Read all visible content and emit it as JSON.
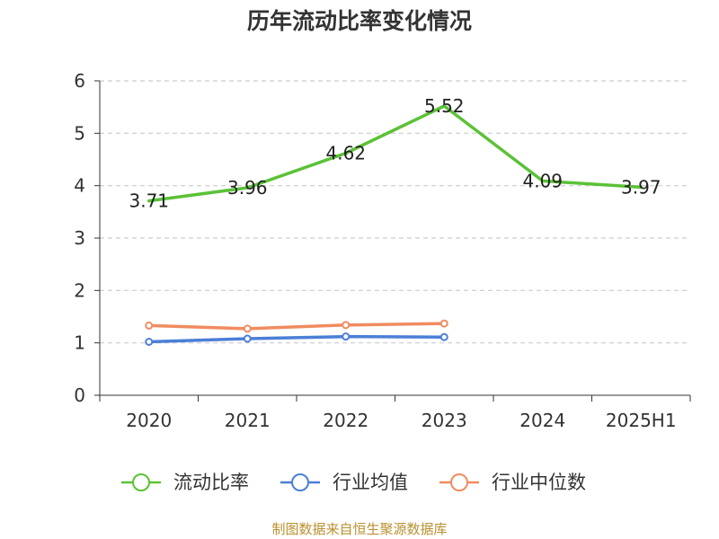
{
  "chart_data": {
    "type": "line",
    "title": "历年流动比率变化情况",
    "categories": [
      "2020",
      "2021",
      "2022",
      "2023",
      "2024",
      "2025H1"
    ],
    "ylim": [
      0,
      6
    ],
    "yticks": [
      0,
      1,
      2,
      3,
      4,
      5,
      6
    ],
    "grid": true,
    "legend_position": "bottom",
    "series": [
      {
        "name": "流动比率",
        "color": "#5bc236",
        "values": [
          3.71,
          3.96,
          4.62,
          5.52,
          4.09,
          3.97
        ],
        "labels": [
          "3.71",
          "3.96",
          "4.62",
          "5.52",
          "4.09",
          "3.97"
        ],
        "markers": false
      },
      {
        "name": "行业均值",
        "color": "#4b7fd6",
        "values": [
          1.02,
          1.08,
          1.12,
          1.11,
          null,
          null
        ],
        "markers": true
      },
      {
        "name": "行业中位数",
        "color": "#f08c60",
        "values": [
          1.33,
          1.27,
          1.34,
          1.37,
          null,
          null
        ],
        "markers": true
      }
    ]
  },
  "source": "制图数据来自恒生聚源数据库"
}
